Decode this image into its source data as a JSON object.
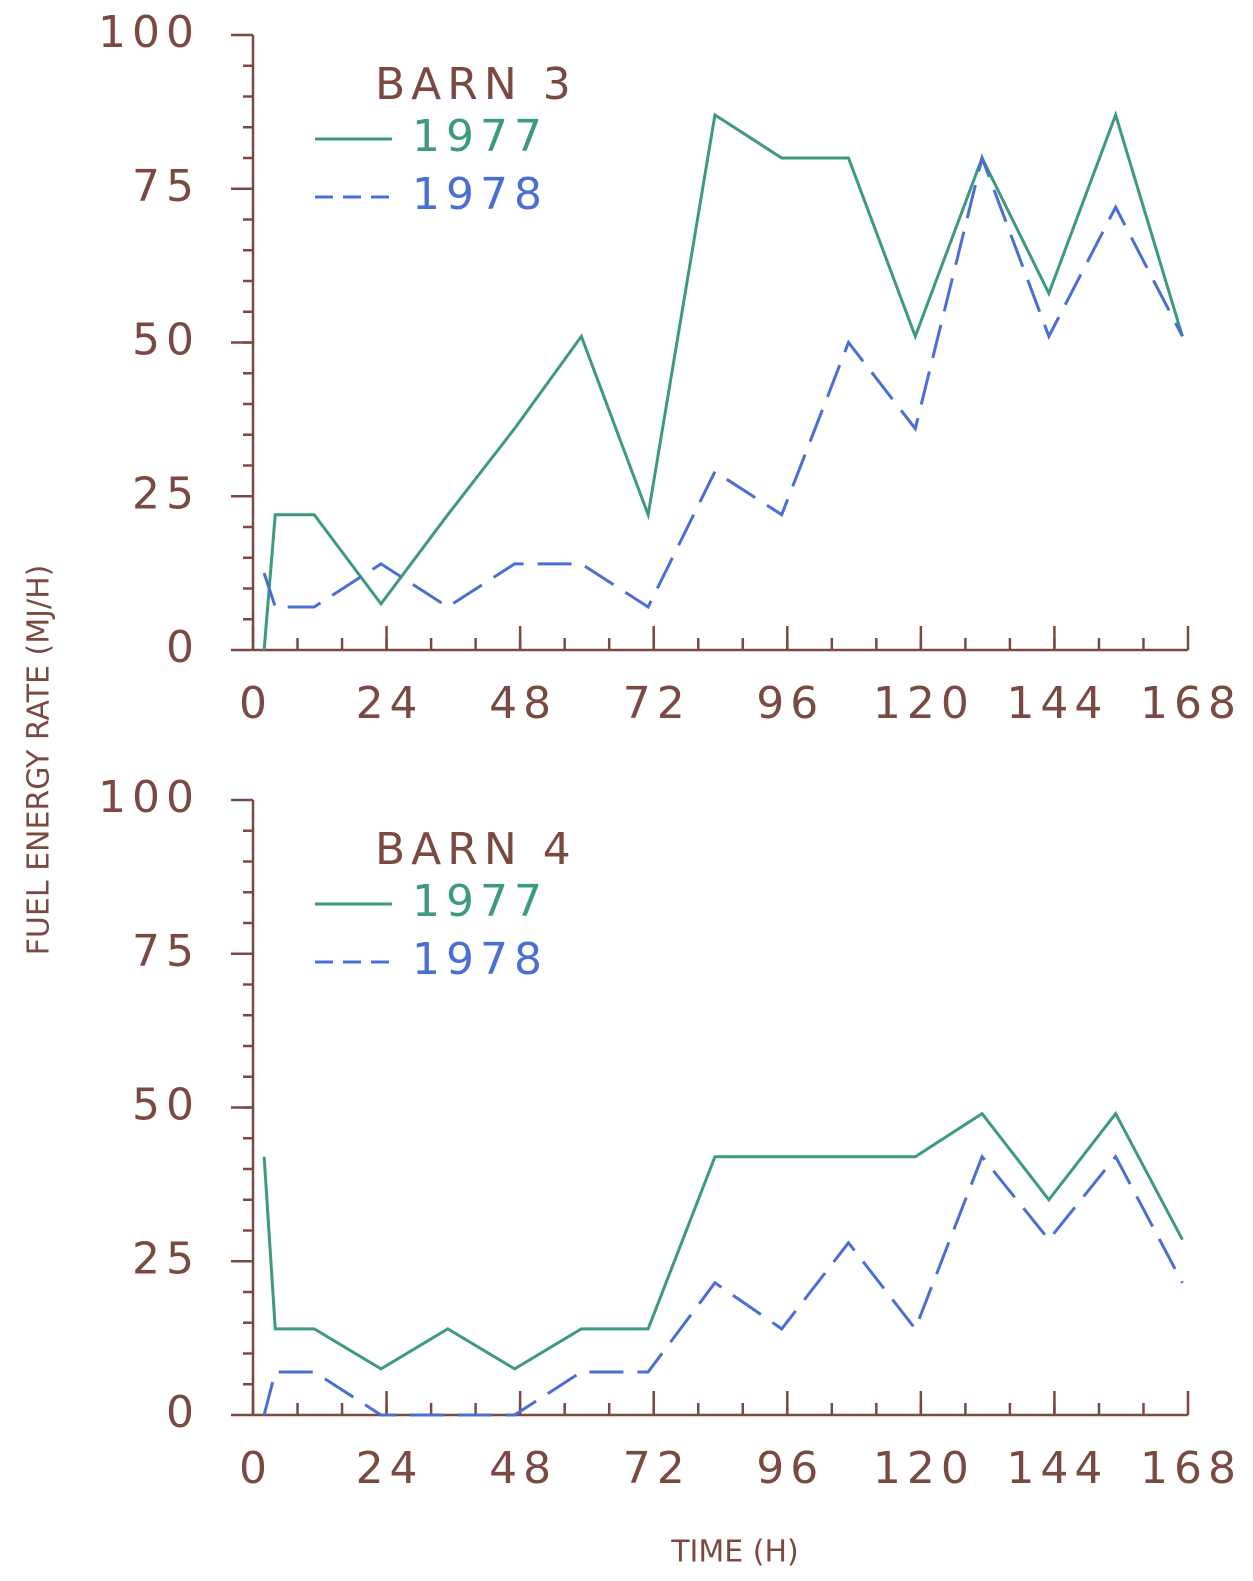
{
  "ylabel": "FUEL ENERGY RATE (MJ/H)",
  "xlabel": "TIME (H)",
  "chart_data": [
    {
      "type": "line",
      "title": "BARN 3",
      "x": [
        2,
        4,
        11,
        23,
        35,
        47,
        59,
        71,
        83,
        95,
        107,
        119,
        131,
        143,
        155,
        167
      ],
      "series": [
        {
          "name": "1977",
          "color": "#3d9a7c",
          "dash": false,
          "values": [
            0,
            22,
            22,
            7.5,
            22,
            36,
            51,
            22,
            87,
            80,
            80,
            51,
            80,
            58,
            87,
            51
          ]
        },
        {
          "name": "1978",
          "color": "#4a6fd4",
          "dash": true,
          "values": [
            12.5,
            7,
            7,
            14,
            7,
            14,
            14,
            7,
            29,
            22,
            50,
            36,
            80,
            51,
            72,
            51
          ]
        }
      ],
      "xlim": [
        0,
        168
      ],
      "xticks": [
        0,
        24,
        48,
        72,
        96,
        120,
        144,
        168
      ],
      "ylim": [
        0,
        100
      ],
      "yticks": [
        0,
        25,
        50,
        75,
        100
      ]
    },
    {
      "type": "line",
      "title": "BARN 4",
      "x": [
        2,
        4,
        11,
        23,
        35,
        47,
        59,
        71,
        83,
        95,
        107,
        119,
        131,
        143,
        155,
        167
      ],
      "series": [
        {
          "name": "1977",
          "color": "#3d9a7c",
          "dash": false,
          "values": [
            42,
            14,
            14,
            7.5,
            14,
            7.5,
            14,
            14,
            42,
            42,
            42,
            42,
            49,
            35,
            49,
            28.5
          ]
        },
        {
          "name": "1978",
          "color": "#4a6fd4",
          "dash": true,
          "values": [
            0,
            7,
            7,
            0,
            0,
            0,
            7,
            7,
            21.5,
            14,
            28,
            14,
            42,
            28.5,
            42,
            21.5
          ]
        }
      ],
      "xlim": [
        0,
        168
      ],
      "xticks": [
        0,
        24,
        48,
        72,
        96,
        120,
        144,
        168
      ],
      "ylim": [
        0,
        100
      ],
      "yticks": [
        0,
        25,
        50,
        75,
        100
      ]
    }
  ]
}
